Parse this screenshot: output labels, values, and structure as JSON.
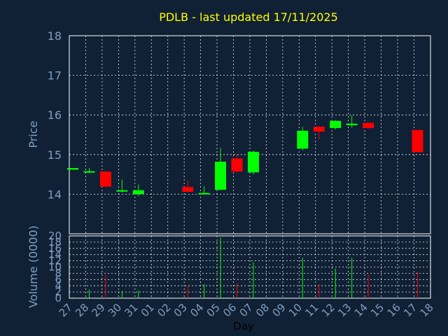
{
  "chart_data": {
    "type": "candlestick",
    "title": "PDLB - last updated 17/11/2025",
    "ylabel": "Price",
    "volume_label": "Volume (0000)",
    "xlabel": "Day",
    "price_ylim": [
      13.0,
      18.0
    ],
    "price_ticks": [
      "14",
      "15",
      "16",
      "17",
      "18"
    ],
    "volume_ylim": [
      0,
      20
    ],
    "volume_ticks": [
      "0",
      "2",
      "4",
      "6",
      "8",
      "10",
      "12",
      "14",
      "16",
      "18",
      "20"
    ],
    "grid": true,
    "colors": {
      "up": "#00ff00",
      "down": "#ff0000"
    },
    "x_ticks": [
      "27",
      "28",
      "29",
      "30",
      "31",
      "01",
      "02",
      "03",
      "04",
      "05",
      "06",
      "07",
      "08",
      "09",
      "10",
      "11",
      "12",
      "13",
      "14",
      "15",
      "16",
      "17",
      "18"
    ],
    "candles": [
      {
        "day": "27",
        "idx": 0,
        "open": 14.62,
        "high": 14.66,
        "low": 14.62,
        "close": 14.66,
        "volume": 0.3
      },
      {
        "day": "28",
        "idx": 1,
        "open": 14.56,
        "high": 14.66,
        "low": 14.53,
        "close": 14.58,
        "volume": 2.8
      },
      {
        "day": "29",
        "idx": 2,
        "open": 14.57,
        "high": 14.58,
        "low": 14.17,
        "close": 14.19,
        "volume": 7.5
      },
      {
        "day": "30",
        "idx": 3,
        "open": 14.07,
        "high": 14.37,
        "low": 14.05,
        "close": 14.1,
        "volume": 2.3
      },
      {
        "day": "31",
        "idx": 4,
        "open": 14.0,
        "high": 14.25,
        "low": 13.95,
        "close": 14.1,
        "volume": 2.5
      },
      {
        "day": "03",
        "idx": 7,
        "open": 14.18,
        "high": 14.35,
        "low": 14.05,
        "close": 14.06,
        "volume": 3.8
      },
      {
        "day": "04",
        "idx": 8,
        "open": 14.0,
        "high": 14.2,
        "low": 13.99,
        "close": 14.03,
        "volume": 4.5
      },
      {
        "day": "05",
        "idx": 9,
        "open": 14.11,
        "high": 15.17,
        "low": 14.1,
        "close": 14.82,
        "volume": 19.5
      },
      {
        "day": "06",
        "idx": 10,
        "open": 14.9,
        "high": 15.0,
        "low": 14.55,
        "close": 14.57,
        "volume": 4.8
      },
      {
        "day": "07",
        "idx": 11,
        "open": 14.55,
        "high": 15.1,
        "low": 14.5,
        "close": 15.07,
        "volume": 11.5
      },
      {
        "day": "10",
        "idx": 14,
        "open": 15.15,
        "high": 15.7,
        "low": 15.1,
        "close": 15.6,
        "volume": 13.0
      },
      {
        "day": "11",
        "idx": 15,
        "open": 15.7,
        "high": 15.72,
        "low": 15.38,
        "close": 15.58,
        "volume": 4.5
      },
      {
        "day": "12",
        "idx": 16,
        "open": 15.67,
        "high": 15.87,
        "low": 15.63,
        "close": 15.85,
        "volume": 9.5
      },
      {
        "day": "13",
        "idx": 17,
        "open": 15.74,
        "high": 15.99,
        "low": 15.68,
        "close": 15.78,
        "volume": 13.0
      },
      {
        "day": "14",
        "idx": 18,
        "open": 15.8,
        "high": 15.82,
        "low": 15.65,
        "close": 15.67,
        "volume": 7.8
      },
      {
        "day": "17",
        "idx": 21,
        "open": 15.62,
        "high": 15.62,
        "low": 15.06,
        "close": 15.06,
        "volume": 8.5
      }
    ]
  }
}
